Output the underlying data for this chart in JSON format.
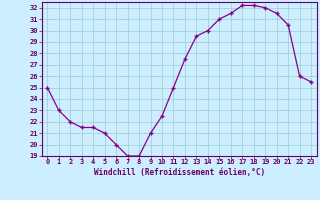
{
  "hours": [
    0,
    1,
    2,
    3,
    4,
    5,
    6,
    7,
    8,
    9,
    10,
    11,
    12,
    13,
    14,
    15,
    16,
    17,
    18,
    19,
    20,
    21,
    22,
    23
  ],
  "values": [
    25,
    23,
    22,
    21.5,
    21.5,
    21,
    20,
    19,
    19,
    21,
    22.5,
    25,
    27.5,
    29.5,
    30,
    31,
    31.5,
    32.2,
    32.2,
    32,
    31.5,
    30.5,
    26,
    25.5
  ],
  "xlabel": "Windchill (Refroidissement éolien,°C)",
  "ylim": [
    19,
    32.5
  ],
  "xlim": [
    -0.5,
    23.5
  ],
  "yticks": [
    19,
    20,
    21,
    22,
    23,
    24,
    25,
    26,
    27,
    28,
    29,
    30,
    31,
    32
  ],
  "xticks": [
    0,
    1,
    2,
    3,
    4,
    5,
    6,
    7,
    8,
    9,
    10,
    11,
    12,
    13,
    14,
    15,
    16,
    17,
    18,
    19,
    20,
    21,
    22,
    23
  ],
  "line_color": "#880088",
  "marker": "+",
  "bg_color": "#cceeff",
  "grid_color": "#99cccc",
  "axis_color": "#660066",
  "label_color": "#660066",
  "tick_color": "#660066"
}
